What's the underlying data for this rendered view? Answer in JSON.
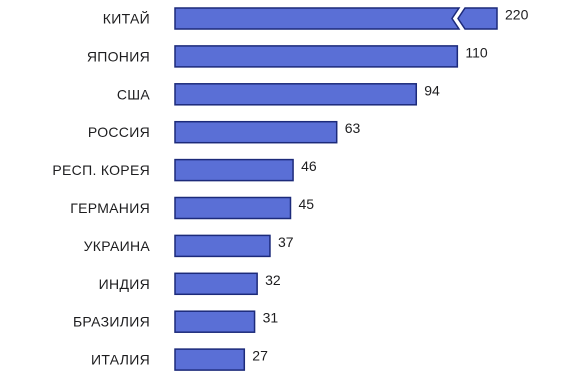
{
  "chart_data": {
    "type": "bar",
    "orientation": "horizontal",
    "categories": [
      "КИТАЙ",
      "ЯПОНИЯ",
      "США",
      "РОССИЯ",
      "РЕСП. КОРЕЯ",
      "ГЕРМАНИЯ",
      "УКРАИНА",
      "ИНДИЯ",
      "БРАЗИЛИЯ",
      "ИТАЛИЯ"
    ],
    "values": [
      220,
      110,
      94,
      63,
      46,
      45,
      37,
      32,
      31,
      27
    ],
    "value_labels": [
      "220",
      "110",
      "94",
      "63",
      "46",
      "45",
      "37",
      "32",
      "31",
      "27"
    ],
    "broken_bars": [
      "КИТАЙ"
    ],
    "title": "",
    "xlabel": "",
    "ylabel": "",
    "xlim": [
      0,
      120
    ],
    "grid": false,
    "legend": "none",
    "bar_color": "#5a6fd6",
    "bar_edge_color": "#1c2a7a"
  }
}
